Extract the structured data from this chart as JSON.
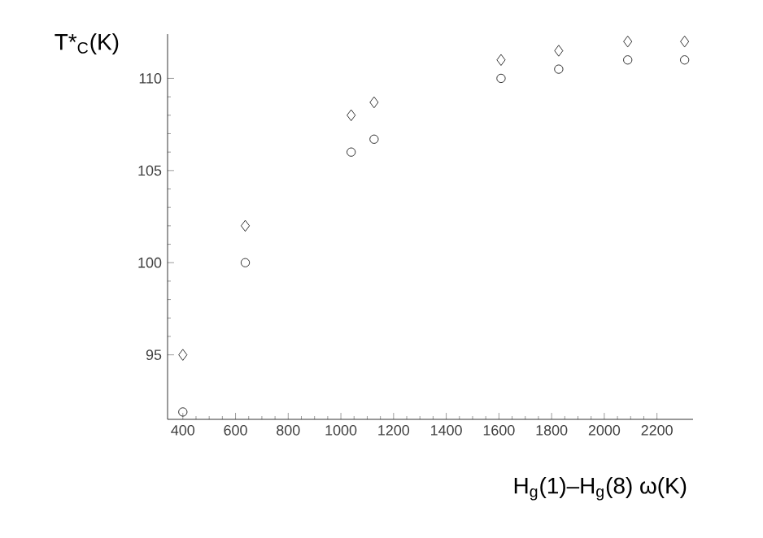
{
  "chart_data": {
    "type": "scatter",
    "ylabel": "T*$_{C}$(K)",
    "xlabel": "H$_{g}$(1)–H$_{g}$(8) ω(K)",
    "x": [
      400,
      637,
      1039,
      1126,
      1608,
      1827,
      2089,
      2305
    ],
    "series": [
      {
        "color": "#000000",
        "marker": "diamond",
        "values": [
          95,
          102,
          108,
          108.7,
          111,
          111.5,
          112,
          112
        ]
      },
      {
        "color": "#000000",
        "marker": "circle",
        "values": [
          91.9,
          100,
          106,
          106.7,
          110,
          110.5,
          111,
          111
        ]
      }
    ],
    "xlim": [
      342,
      2337
    ],
    "ylim": [
      91.5,
      112.4
    ],
    "xticks": [
      400,
      600,
      800,
      1000,
      1200,
      1400,
      1600,
      1800,
      2000,
      2200
    ],
    "yticks": [
      95,
      100,
      105,
      110
    ]
  }
}
